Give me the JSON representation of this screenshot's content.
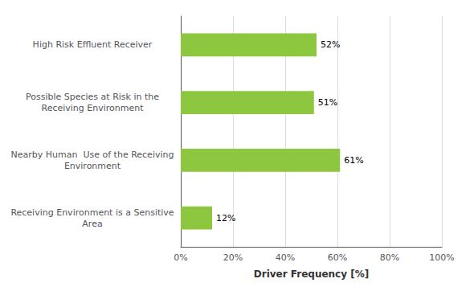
{
  "chart_data": {
    "type": "bar",
    "orientation": "horizontal",
    "categories": [
      "Receiving Environment is a Sensitive\nArea",
      "Nearby Human  Use of the Receiving\nEnvironment",
      "Possible Species at Risk in the\nReceiving Environment",
      "High Risk Effluent Receiver"
    ],
    "values": [
      12,
      61,
      51,
      52
    ],
    "value_labels": [
      "12%",
      "61%",
      "51%",
      "52%"
    ],
    "data_labels": true,
    "color": "#8DC63F",
    "xlabel": "Driver Frequency [%]",
    "xlim": [
      0,
      100
    ],
    "xticks": [
      {
        "value": 0,
        "label": "0%"
      },
      {
        "value": 20,
        "label": "20%"
      },
      {
        "value": 40,
        "label": "40%"
      },
      {
        "value": 60,
        "label": "60%"
      },
      {
        "value": 80,
        "label": "80%"
      },
      {
        "value": 100,
        "label": "100%"
      }
    ],
    "grid": true
  }
}
